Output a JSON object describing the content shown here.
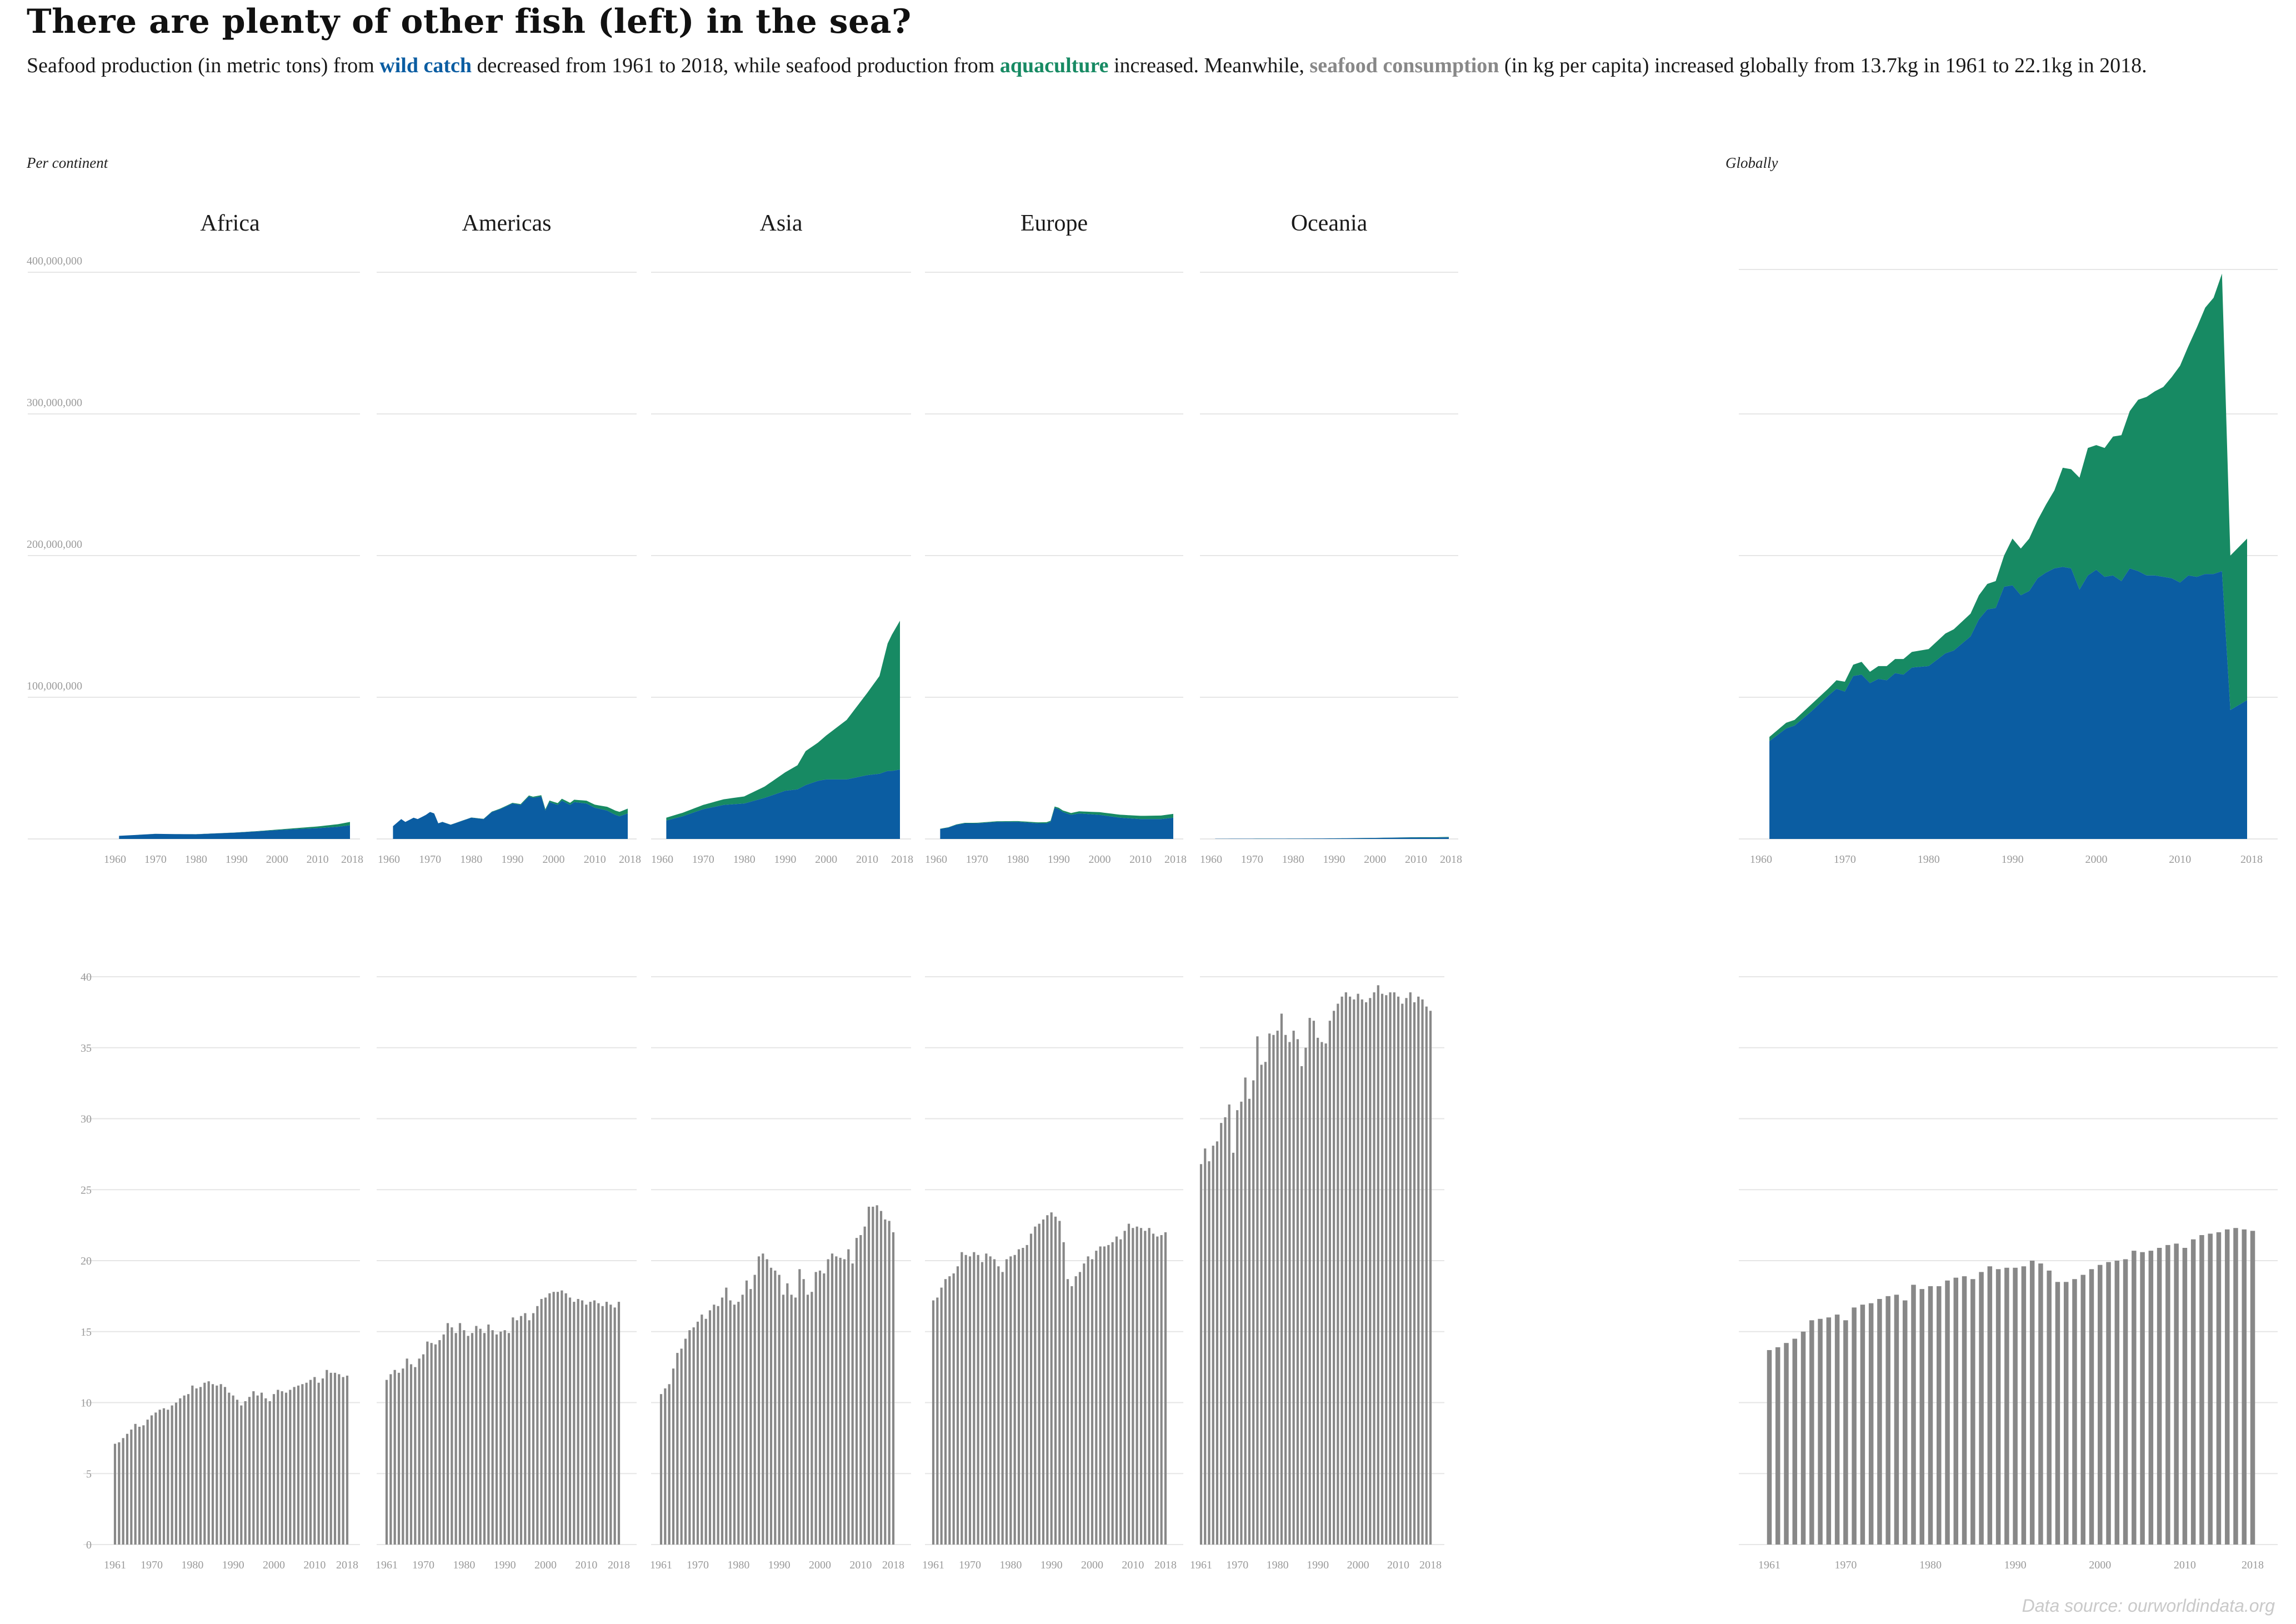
{
  "title": "There are plenty of other fish (left) in the sea?",
  "subtitle": {
    "part1": "Seafood production (in metric tons) from ",
    "wild": "wild catch",
    "part2": " decreased from 1961 to 2018, while seafood production from ",
    "aqua": "aquaculture",
    "part3": " increased. Meanwhile, ",
    "cons": "seafood consumption",
    "part4": " (in kg per capita) increased globally from 13.7kg in 1961 to 22.1kg in 2018."
  },
  "labels": {
    "per_continent": "Per continent",
    "globally": "Globally"
  },
  "source": "Data source: ourworldindata.org",
  "colors": {
    "wild": "#0b5da2",
    "aqua": "#178a63",
    "consumption": "#888888",
    "grid": "#e6e6e6",
    "tick": "#9a9a9a"
  },
  "chart_data": [
    {
      "type": "area",
      "stacked": true,
      "scope": "per-continent",
      "series_names": [
        "wild catch",
        "aquaculture"
      ],
      "ylim": [
        0,
        400000000
      ],
      "yticks": [
        "100,000,000",
        "200,000,000",
        "300,000,000",
        "400,000,000"
      ],
      "xticks": [
        "1960",
        "1970",
        "1980",
        "1990",
        "2000",
        "2010",
        "2018"
      ],
      "panels": [
        {
          "name": "Africa",
          "years": [
            1961,
            1965,
            1970,
            1975,
            1980,
            1985,
            1990,
            1995,
            2000,
            2005,
            2010,
            2015,
            2018
          ],
          "wild_catch": [
            2200000,
            2800000,
            3600000,
            3400000,
            3300000,
            3900000,
            4500000,
            5300000,
            6200000,
            7000000,
            7600000,
            8600000,
            9600000
          ],
          "aquaculture": [
            10000,
            10000,
            20000,
            30000,
            60000,
            80000,
            100000,
            200000,
            400000,
            700000,
            1200000,
            1800000,
            2400000
          ]
        },
        {
          "name": "Americas",
          "years": [
            1961,
            1963,
            1964,
            1966,
            1967,
            1969,
            1970,
            1971,
            1972,
            1973,
            1975,
            1977,
            1980,
            1983,
            1985,
            1987,
            1990,
            1992,
            1994,
            1995,
            1997,
            1998,
            1999,
            2001,
            2002,
            2004,
            2005,
            2008,
            2010,
            2013,
            2015,
            2016,
            2018
          ],
          "wild_catch": [
            9000000,
            14000000,
            12000000,
            15000000,
            14000000,
            17000000,
            19000000,
            18000000,
            11000000,
            12000000,
            10000000,
            12000000,
            15000000,
            14000000,
            19000000,
            21000000,
            25000000,
            24000000,
            30000000,
            29000000,
            30000000,
            20000000,
            26000000,
            24000000,
            27000000,
            24000000,
            26000000,
            25000000,
            22000000,
            20000000,
            17000000,
            16000000,
            18000000
          ],
          "aquaculture": [
            0,
            0,
            0,
            0,
            0,
            0,
            50000,
            50000,
            60000,
            70000,
            80000,
            100000,
            150000,
            200000,
            300000,
            400000,
            500000,
            600000,
            700000,
            800000,
            900000,
            1000000,
            1100000,
            1300000,
            1400000,
            1500000,
            1700000,
            2000000,
            2200000,
            2700000,
            3000000,
            3100000,
            3400000
          ]
        },
        {
          "name": "Asia",
          "years": [
            1961,
            1965,
            1970,
            1975,
            1980,
            1985,
            1990,
            1993,
            1995,
            1998,
            2000,
            2005,
            2010,
            2013,
            2015,
            2016,
            2018
          ],
          "wild_catch": [
            13000000,
            16000000,
            21000000,
            24000000,
            25000000,
            29000000,
            34000000,
            35000000,
            38000000,
            41000000,
            42000000,
            42000000,
            45000000,
            46000000,
            48000000,
            48000000,
            49000000
          ],
          "aquaculture": [
            2000000,
            2500000,
            3000000,
            4000000,
            5000000,
            8000000,
            13000000,
            17000000,
            24000000,
            27000000,
            31000000,
            42000000,
            58000000,
            69000000,
            90000000,
            96000000,
            105000000
          ]
        },
        {
          "name": "Europe",
          "years": [
            1961,
            1963,
            1965,
            1967,
            1970,
            1975,
            1980,
            1985,
            1987,
            1988,
            1989,
            1990,
            1991,
            1993,
            1995,
            2000,
            2005,
            2010,
            2015,
            2018
          ],
          "wild_catch": [
            7000000,
            8000000,
            10000000,
            11000000,
            11000000,
            12000000,
            12000000,
            11000000,
            11000000,
            12000000,
            22000000,
            21000000,
            19000000,
            17000000,
            18000000,
            17000000,
            15000000,
            14000000,
            14000000,
            15000000
          ],
          "aquaculture": [
            200000,
            250000,
            300000,
            350000,
            400000,
            500000,
            600000,
            700000,
            800000,
            850000,
            900000,
            1000000,
            1100000,
            1300000,
            1500000,
            1900000,
            2100000,
            2300000,
            2500000,
            2700000
          ]
        },
        {
          "name": "Oceania",
          "years": [
            1961,
            1970,
            1980,
            1990,
            2000,
            2005,
            2010,
            2015,
            2018
          ],
          "wild_catch": [
            150000,
            200000,
            250000,
            400000,
            700000,
            900000,
            1000000,
            1000000,
            1100000
          ],
          "aquaculture": [
            10000,
            20000,
            30000,
            50000,
            100000,
            150000,
            200000,
            250000,
            300000
          ]
        }
      ]
    },
    {
      "type": "area",
      "stacked": true,
      "scope": "global",
      "series_names": [
        "wild catch",
        "aquaculture"
      ],
      "ylim": [
        0,
        400000000
      ],
      "xticks": [
        "1960",
        "1970",
        "1980",
        "1990",
        "2000",
        "2010",
        "2018"
      ],
      "years": [
        1961,
        1963,
        1964,
        1966,
        1968,
        1969,
        1970,
        1971,
        1972,
        1973,
        1974,
        1975,
        1976,
        1977,
        1978,
        1980,
        1982,
        1983,
        1985,
        1986,
        1987,
        1988,
        1989,
        1990,
        1991,
        1992,
        1993,
        1994,
        1995,
        1996,
        1997,
        1998,
        1999,
        2000,
        2001,
        2002,
        2003,
        2004,
        2005,
        2006,
        2007,
        2008,
        2009,
        2010,
        2011,
        2012,
        2013,
        2014,
        2015,
        2016,
        2018
      ],
      "wild_catch": [
        69000000,
        78000000,
        80000000,
        90000000,
        101000000,
        106000000,
        104000000,
        115000000,
        116000000,
        110000000,
        113000000,
        112000000,
        117000000,
        116000000,
        121000000,
        122000000,
        131000000,
        133000000,
        143000000,
        155000000,
        162000000,
        163000000,
        178000000,
        179000000,
        172000000,
        175000000,
        184000000,
        188000000,
        191000000,
        192000000,
        191000000,
        176000000,
        186000000,
        190000000,
        185000000,
        186000000,
        182000000,
        191000000,
        189000000,
        186000000,
        186000000,
        185000000,
        184000000,
        181000000,
        186000000,
        185000000,
        187000000,
        187000000,
        189000000,
        91000000,
        98000000
      ],
      "aquaculture": [
        3000000,
        4000000,
        4000000,
        5000000,
        5000000,
        6000000,
        7000000,
        8000000,
        9000000,
        8000000,
        9000000,
        10000000,
        10000000,
        11000000,
        11000000,
        12000000,
        14000000,
        15000000,
        16000000,
        17000000,
        18000000,
        19000000,
        22000000,
        33000000,
        33000000,
        37000000,
        41000000,
        48000000,
        55000000,
        70000000,
        70000000,
        79000000,
        90000000,
        88000000,
        91000000,
        98000000,
        103000000,
        111000000,
        121000000,
        126000000,
        130000000,
        134000000,
        142000000,
        153000000,
        162000000,
        176000000,
        188000000,
        195000000,
        210000000,
        109000000,
        114000000
      ]
    },
    {
      "type": "bar",
      "scope": "per-continent",
      "series_name": "seafood consumption",
      "unit": "kg per capita",
      "ylim": [
        0,
        40
      ],
      "yticks": [
        "0",
        "5",
        "10",
        "15",
        "20",
        "25",
        "30",
        "35",
        "40"
      ],
      "xticks": [
        "1961",
        "1970",
        "1980",
        "1990",
        "2000",
        "2010",
        "2018"
      ],
      "years": [
        1961,
        1962,
        1963,
        1964,
        1965,
        1966,
        1967,
        1968,
        1969,
        1970,
        1971,
        1972,
        1973,
        1974,
        1975,
        1976,
        1977,
        1978,
        1979,
        1980,
        1981,
        1982,
        1983,
        1984,
        1985,
        1986,
        1987,
        1988,
        1989,
        1990,
        1991,
        1992,
        1993,
        1994,
        1995,
        1996,
        1997,
        1998,
        1999,
        2000,
        2001,
        2002,
        2003,
        2004,
        2005,
        2006,
        2007,
        2008,
        2009,
        2010,
        2011,
        2012,
        2013,
        2014,
        2015,
        2016,
        2017,
        2018
      ],
      "panels": [
        {
          "name": "Africa",
          "values": [
            7.1,
            7.2,
            7.5,
            7.8,
            8.1,
            8.5,
            8.3,
            8.4,
            8.8,
            9.1,
            9.3,
            9.5,
            9.6,
            9.5,
            9.8,
            10,
            10.3,
            10.5,
            10.6,
            11.2,
            11,
            11.1,
            11.4,
            11.5,
            11.3,
            11.2,
            11.3,
            11.1,
            10.7,
            10.5,
            10.2,
            9.8,
            10.1,
            10.4,
            10.8,
            10.5,
            10.7,
            10.3,
            10.1,
            10.6,
            10.9,
            10.8,
            10.7,
            10.9,
            11.1,
            11.2,
            11.3,
            11.4,
            11.6,
            11.8,
            11.4,
            11.7,
            12.3,
            12.1,
            12.1,
            12,
            11.8,
            11.9
          ]
        },
        {
          "name": "Americas",
          "values": [
            11.6,
            12,
            12.3,
            12.1,
            12.4,
            13.1,
            12.7,
            12.5,
            13.1,
            13.4,
            14.3,
            14.2,
            14.1,
            14.4,
            14.8,
            15.6,
            15.3,
            14.9,
            15.6,
            15.1,
            14.7,
            14.9,
            15.4,
            15.2,
            14.9,
            15.5,
            15.1,
            14.8,
            15,
            15.1,
            14.9,
            16,
            15.8,
            16.1,
            16.3,
            15.8,
            16.3,
            16.8,
            17.3,
            17.4,
            17.7,
            17.8,
            17.8,
            17.9,
            17.7,
            17.4,
            17.1,
            17.3,
            17.2,
            16.9,
            17.1,
            17.2,
            17,
            16.8,
            17.1,
            16.9,
            16.7,
            17.1
          ]
        },
        {
          "name": "Asia",
          "values": [
            10.6,
            11,
            11.3,
            12.4,
            13.5,
            13.8,
            14.5,
            15.1,
            15.3,
            15.7,
            16.2,
            15.9,
            16.5,
            16.9,
            16.8,
            17.4,
            18.1,
            17.2,
            16.9,
            17.1,
            17.6,
            18.6,
            18,
            19,
            20.3,
            20.5,
            20.1,
            19.5,
            19.3,
            19,
            17.6,
            18.4,
            17.6,
            17.4,
            19.4,
            18.7,
            17.6,
            17.8,
            19.2,
            19.3,
            19.1,
            20.1,
            20.5,
            20.3,
            20.2,
            20.1,
            20.8,
            19.8,
            21.6,
            21.8,
            22.4,
            23.8,
            23.8,
            23.9,
            23.5,
            22.9,
            22.8,
            22
          ]
        },
        {
          "name": "Europe",
          "values": [
            17.2,
            17.4,
            18.1,
            18.7,
            18.9,
            19.1,
            19.6,
            20.6,
            20.4,
            20.3,
            20.6,
            20.4,
            19.9,
            20.5,
            20.3,
            20.1,
            19.6,
            19.2,
            20.1,
            20.3,
            20.4,
            20.8,
            20.9,
            21.1,
            21.9,
            22.4,
            22.6,
            22.9,
            23.2,
            23.4,
            23.1,
            22.8,
            21.3,
            18.7,
            18.2,
            18.9,
            19.2,
            19.8,
            20.3,
            20.1,
            20.7,
            21,
            21,
            21.1,
            21.3,
            21.7,
            21.5,
            22.1,
            22.6,
            22.3,
            22.4,
            22.3,
            22.1,
            22.3,
            21.9,
            21.7,
            21.8,
            22
          ]
        },
        {
          "name": "Oceania",
          "values": [
            26.8,
            27.9,
            27,
            28.1,
            28.4,
            29.7,
            30.1,
            31,
            27.6,
            30.6,
            31.2,
            32.9,
            31.4,
            32.7,
            35.8,
            33.8,
            34,
            36,
            35.9,
            36.2,
            37.4,
            35.9,
            35.4,
            36.2,
            35.6,
            33.7,
            35,
            37.1,
            36.9,
            35.7,
            35.4,
            35.3,
            36.9,
            37.6,
            38.1,
            38.6,
            38.9,
            38.6,
            38.4,
            38.8,
            38.4,
            38.2,
            38.5,
            38.9,
            39.4,
            38.8,
            38.7,
            38.9,
            38.9,
            38.6,
            38.1,
            38.5,
            38.9,
            38.2,
            38.6,
            38.4,
            37.9,
            37.6
          ]
        }
      ]
    },
    {
      "type": "bar",
      "scope": "global",
      "series_name": "seafood consumption",
      "unit": "kg per capita",
      "ylim": [
        0,
        40
      ],
      "xticks": [
        "1961",
        "1970",
        "1980",
        "1990",
        "2000",
        "2010",
        "2018"
      ],
      "years": [
        1961,
        1962,
        1963,
        1964,
        1965,
        1966,
        1967,
        1968,
        1969,
        1970,
        1971,
        1972,
        1973,
        1974,
        1975,
        1976,
        1977,
        1978,
        1979,
        1980,
        1981,
        1982,
        1983,
        1984,
        1985,
        1986,
        1987,
        1988,
        1989,
        1990,
        1991,
        1992,
        1993,
        1994,
        1995,
        1996,
        1997,
        1998,
        1999,
        2000,
        2001,
        2002,
        2003,
        2004,
        2005,
        2006,
        2007,
        2008,
        2009,
        2010,
        2011,
        2012,
        2013,
        2014,
        2015,
        2016,
        2017,
        2018
      ],
      "values": [
        13.7,
        13.9,
        14.2,
        14.5,
        15,
        15.8,
        15.9,
        16,
        16.2,
        15.8,
        16.7,
        16.9,
        17,
        17.3,
        17.5,
        17.6,
        17.2,
        18.3,
        18,
        18.2,
        18.2,
        18.6,
        18.8,
        18.9,
        18.7,
        19.2,
        19.6,
        19.4,
        19.5,
        19.5,
        19.6,
        20,
        19.8,
        19.3,
        18.5,
        18.5,
        18.7,
        19,
        19.4,
        19.7,
        19.9,
        20,
        20.1,
        20.7,
        20.6,
        20.7,
        20.9,
        21.1,
        21.2,
        20.9,
        21.5,
        21.8,
        21.9,
        22,
        22.2,
        22.3,
        22.2,
        22.1
      ]
    }
  ]
}
